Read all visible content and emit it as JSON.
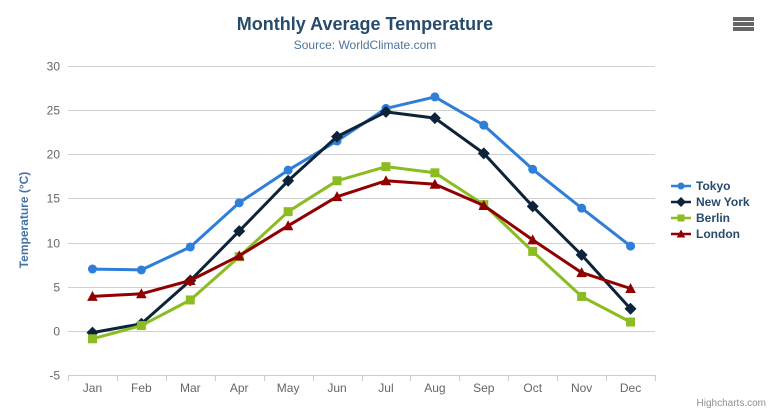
{
  "chart_data": {
    "type": "line",
    "title": "Monthly Average Temperature",
    "subtitle": "Source: WorldClimate.com",
    "ylabel": "Temperature (°C)",
    "credit": "Highcharts.com",
    "ylim": [
      -5,
      30
    ],
    "yticks": [
      -5,
      0,
      5,
      10,
      15,
      20,
      25,
      30
    ],
    "categories": [
      "Jan",
      "Feb",
      "Mar",
      "Apr",
      "May",
      "Jun",
      "Jul",
      "Aug",
      "Sep",
      "Oct",
      "Nov",
      "Dec"
    ],
    "legend_position": "right",
    "grid": true,
    "series": [
      {
        "name": "Tokyo",
        "color": "#2f7ed8",
        "marker": "circle",
        "values": [
          7.0,
          6.9,
          9.5,
          14.5,
          18.2,
          21.5,
          25.2,
          26.5,
          23.3,
          18.3,
          13.9,
          9.6
        ]
      },
      {
        "name": "New York",
        "color": "#0d233a",
        "marker": "diamond",
        "values": [
          -0.2,
          0.8,
          5.7,
          11.3,
          17.0,
          22.0,
          24.8,
          24.1,
          20.1,
          14.1,
          8.6,
          2.5
        ]
      },
      {
        "name": "Berlin",
        "color": "#8bbc21",
        "marker": "square",
        "values": [
          -0.9,
          0.6,
          3.5,
          8.4,
          13.5,
          17.0,
          18.6,
          17.9,
          14.3,
          9.0,
          3.9,
          1.0
        ]
      },
      {
        "name": "London",
        "color": "#910000",
        "marker": "triangle",
        "values": [
          3.9,
          4.2,
          5.7,
          8.5,
          11.9,
          15.2,
          17.0,
          16.6,
          14.2,
          10.3,
          6.6,
          4.8
        ]
      }
    ],
    "palette": {
      "title": "#274b6d",
      "subtitle": "#4d759e",
      "axis_title": "#4572a7",
      "tick_label": "#666666",
      "grid": "#d0d0d0",
      "axis_line": "#c0d0e0",
      "credit": "#909090",
      "menu_icon": "#666666"
    }
  }
}
